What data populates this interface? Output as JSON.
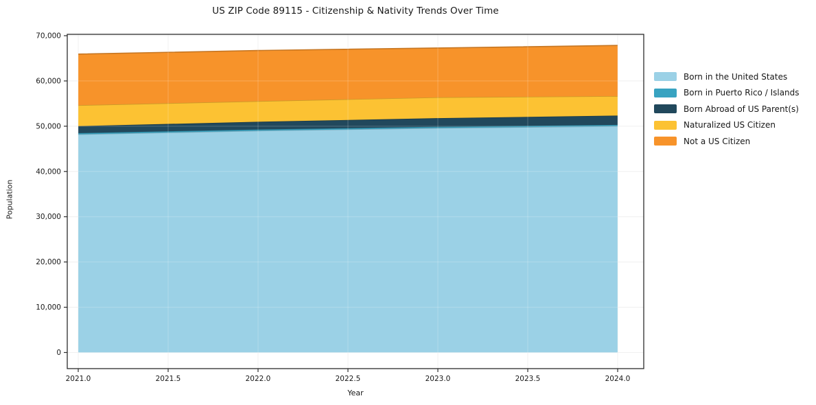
{
  "chart_data": {
    "type": "area",
    "stacked": true,
    "title": "US ZIP Code 89115 - Citizenship & Nativity Trends Over Time",
    "xlabel": "Year",
    "ylabel": "Population",
    "x": [
      2021,
      2022,
      2023,
      2024
    ],
    "series": [
      {
        "name": "Born in the United States",
        "color": "#9bd1e6",
        "values": [
          48200,
          49000,
          49600,
          50000
        ]
      },
      {
        "name": "Born in Puerto Rico / Islands",
        "color": "#38a3c1",
        "values": [
          280,
          280,
          280,
          300
        ]
      },
      {
        "name": "Born Abroad of US Parent(s)",
        "color": "#21485c",
        "values": [
          1550,
          1700,
          1900,
          2050
        ]
      },
      {
        "name": "Naturalized US Citizen",
        "color": "#fcc233",
        "values": [
          4600,
          4550,
          4600,
          4300
        ]
      },
      {
        "name": "Not a US Citizen",
        "color": "#f7932a",
        "values": [
          11300,
          11200,
          10900,
          11200
        ]
      }
    ],
    "totals": [
      65930,
      66730,
      67280,
      67850
    ],
    "xlim": [
      2021,
      2024
    ],
    "ylim": [
      0,
      70000
    ],
    "xticks": [
      2021.0,
      2021.5,
      2022.0,
      2022.5,
      2023.0,
      2023.5,
      2024.0
    ],
    "xtick_labels": [
      "2021.0",
      "2021.5",
      "2022.0",
      "2022.5",
      "2023.0",
      "2023.5",
      "2024.0"
    ],
    "yticks": [
      0,
      10000,
      20000,
      30000,
      40000,
      50000,
      60000,
      70000
    ],
    "ytick_labels": [
      "0",
      "10,000",
      "20,000",
      "30,000",
      "40,000",
      "50,000",
      "60,000",
      "70,000"
    ],
    "grid": true,
    "legend_position": "right"
  },
  "colors": {
    "background": "#ffffff",
    "spine": "#2b2b2b",
    "gridline": "#ececec",
    "text": "#171717"
  }
}
